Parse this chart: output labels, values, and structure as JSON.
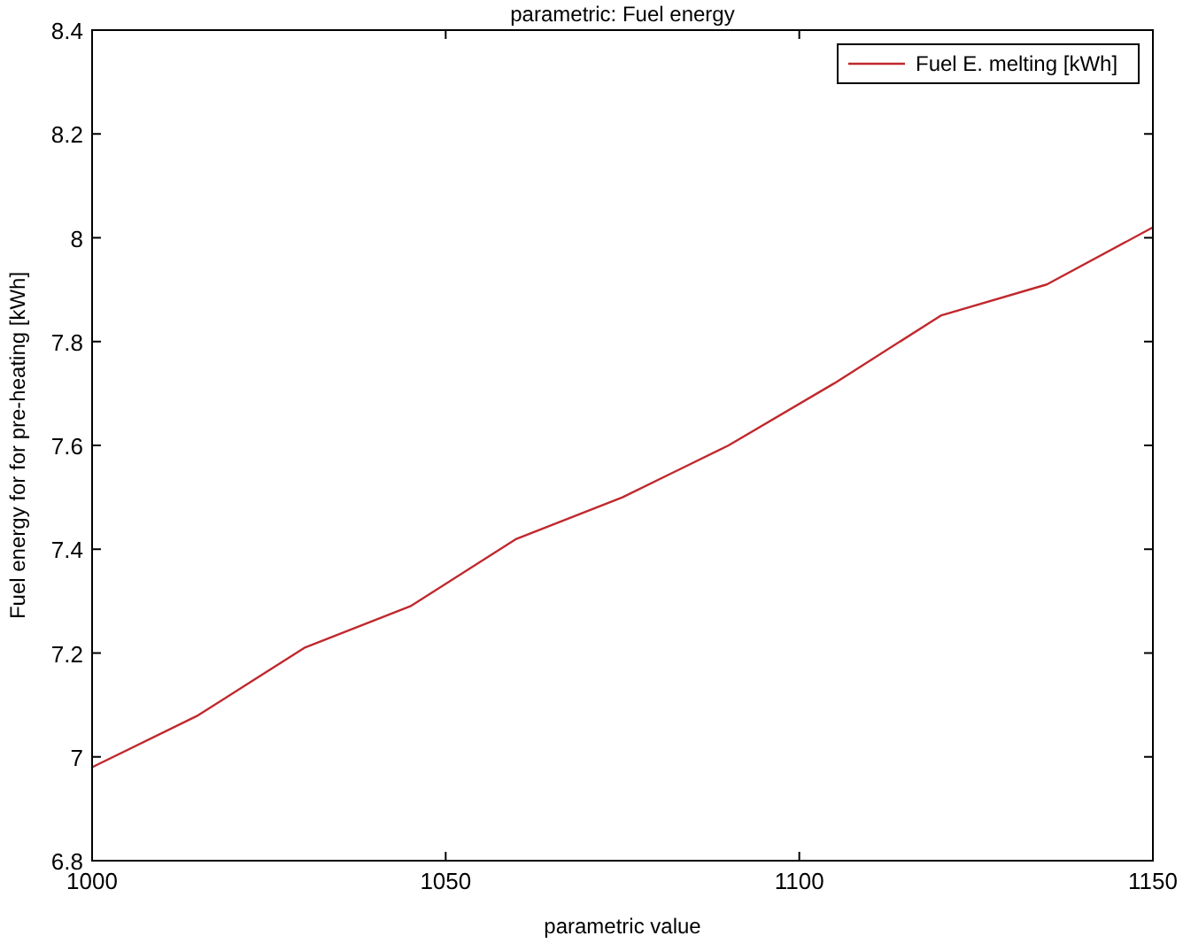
{
  "chart_data": {
    "type": "line",
    "title": "parametric: Fuel energy",
    "xlabel": "parametric value",
    "ylabel": "Fuel energy for for pre-heating [kWh]",
    "x": [
      1000,
      1015,
      1030,
      1045,
      1060,
      1075,
      1090,
      1105,
      1120,
      1135,
      1150
    ],
    "series": [
      {
        "name": "Fuel E. melting [kWh]",
        "color": "#c0282d",
        "values": [
          6.98,
          7.08,
          7.21,
          7.29,
          7.42,
          7.5,
          7.6,
          7.72,
          7.85,
          7.91,
          8.02
        ]
      }
    ],
    "xlim": [
      1000,
      1150
    ],
    "xticks": [
      1000,
      1050,
      1100,
      1150
    ],
    "ylim": [
      6.8,
      8.4
    ],
    "yticks": [
      6.8,
      7,
      7.2,
      7.4,
      7.6,
      7.8,
      8,
      8.2,
      8.4
    ],
    "grid": false,
    "legend": "top right",
    "marker": "none",
    "line_style": "solid"
  }
}
